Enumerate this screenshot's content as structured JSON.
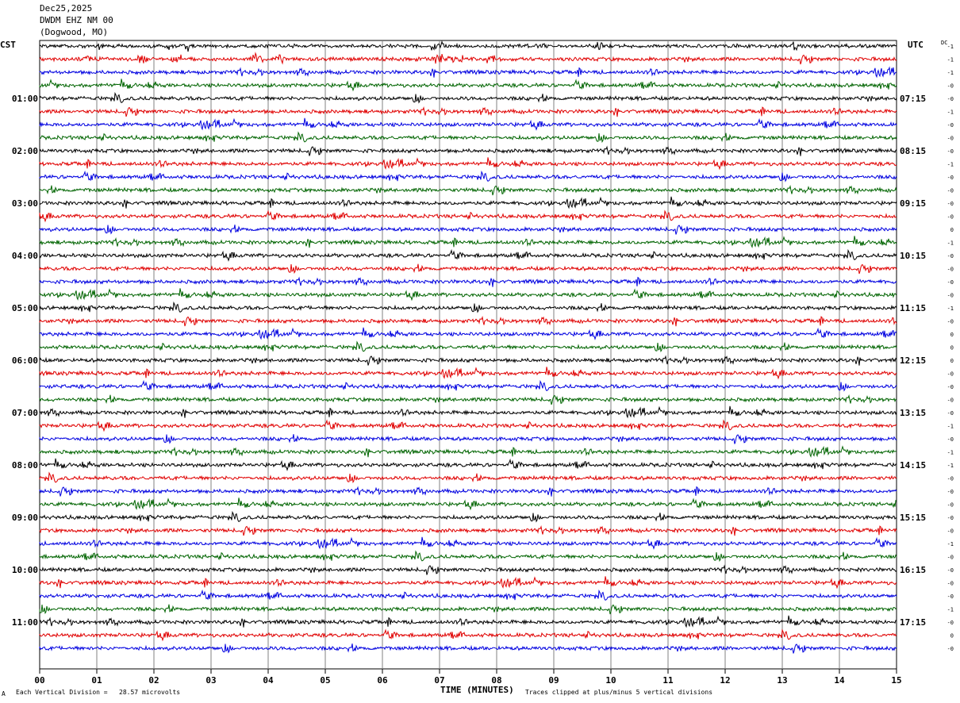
{
  "header": {
    "date": "Dec25,2025",
    "station": "DWDM EHZ NM 00",
    "location": "(Dogwood, MO)"
  },
  "left_timezone": "CST",
  "right_timezone": "UTC",
  "dc_label": "DC",
  "footer": {
    "scale_note": "Each Vertical Division =   28.57 microvolts",
    "xlabel": "TIME (MINUTES)",
    "clip_note": "Traces clipped at plus/minus 5 vertical divisions",
    "corner_mark": "A"
  },
  "chart_data": {
    "type": "line",
    "x_ticks": [
      "00",
      "01",
      "02",
      "03",
      "04",
      "05",
      "06",
      "07",
      "08",
      "09",
      "10",
      "11",
      "12",
      "13",
      "14",
      "15"
    ],
    "xlim": [
      0,
      15
    ],
    "rows_per_hour": 4,
    "trace_colors": [
      "#000000",
      "#e00000",
      "#0000e0",
      "#006400"
    ],
    "left_hour_labels": [
      "01:00",
      "02:00",
      "03:00",
      "04:00",
      "05:00",
      "06:00",
      "07:00",
      "08:00",
      "09:00",
      "10:00",
      "11:00"
    ],
    "right_hour_labels": [
      "07:15",
      "08:15",
      "09:15",
      "10:15",
      "11:15",
      "12:15",
      "13:15",
      "14:15",
      "15:15",
      "16:15",
      "17:15"
    ],
    "dc_offsets": [
      "-1",
      "-1",
      "-1",
      "-0",
      "-0",
      "-1",
      "-0",
      "-0",
      "-0",
      "-1",
      "-0",
      "-0",
      "-0",
      "-0",
      "0",
      "-1",
      "-0",
      "-0",
      "-0",
      "-0",
      "-1",
      "-0",
      "0",
      "0",
      "0",
      "-0",
      "-0",
      "-0",
      "-0",
      "-1",
      "-0",
      "-1",
      "-1",
      "-0",
      "-0",
      "-0",
      "-0",
      "-0",
      "-1",
      "-0",
      "-0",
      "-0",
      "-0",
      "-1",
      "-0",
      "0",
      "-0"
    ],
    "grid": true
  }
}
